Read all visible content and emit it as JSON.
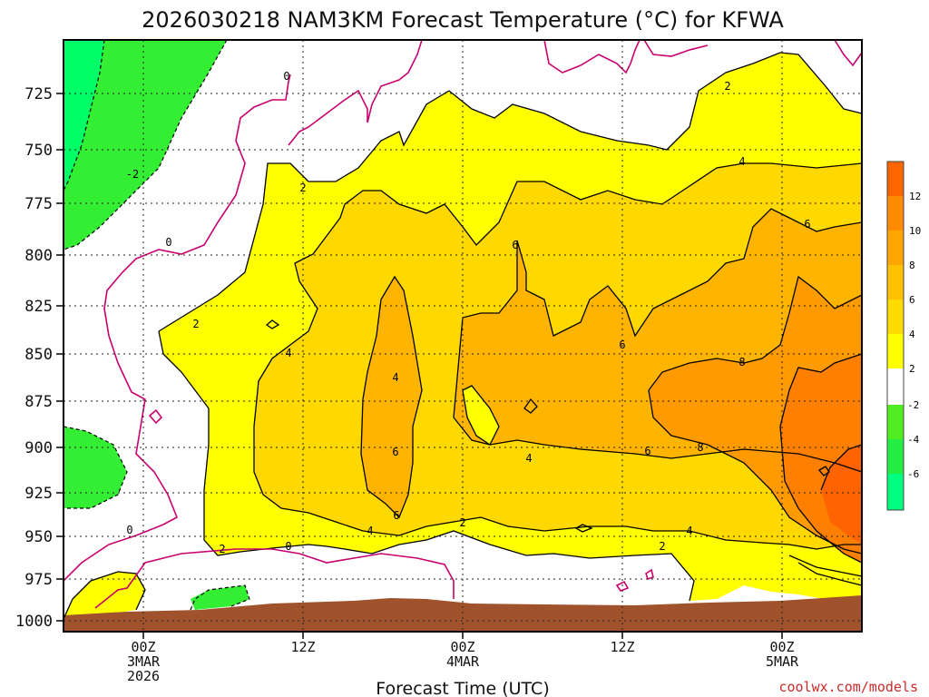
{
  "chart_data": {
    "type": "heatmap",
    "title": "2026030218 NAM3KM Forecast Temperature (°C) for KFWA",
    "xlabel": "Forecast Time (UTC)",
    "ylabel": "",
    "credit": "coolwx.com/models",
    "y_ticks": [
      "725",
      "750",
      "775",
      "800",
      "825",
      "850",
      "875",
      "900",
      "925",
      "950",
      "975",
      "1000"
    ],
    "x_ticks": [
      {
        "lines": [
          "00Z",
          "3MAR",
          "2026"
        ]
      },
      {
        "lines": [
          "12Z"
        ]
      },
      {
        "lines": [
          "00Z",
          "4MAR"
        ]
      },
      {
        "lines": [
          "12Z"
        ]
      },
      {
        "lines": [
          "00Z",
          "5MAR"
        ]
      }
    ],
    "colorbar_labels": [
      "12",
      "10",
      "8",
      "6",
      "4",
      "2",
      "-2",
      "-4",
      "-6"
    ],
    "contour_labels": [
      "0",
      "-2",
      "0",
      "2",
      "2",
      "4",
      "6",
      "6",
      "4",
      "6",
      "4",
      "6",
      "8",
      "8",
      "6",
      "4",
      "4",
      "2",
      "2",
      "0",
      "0",
      "2",
      "2",
      "4",
      "6"
    ],
    "colors": {
      "minus6": "#00ff7f",
      "minus4": "#3cf03c",
      "minus2": "#7cec28",
      "zero_band": "#ffffff",
      "plus2": "#ffff00",
      "plus4": "#ffe000",
      "plus6": "#ffc800",
      "plus8": "#ffaa00",
      "plus10": "#ff8c00",
      "plus12": "#ff6600",
      "ground": "#a0522d",
      "zero_contour": "#c8006e"
    }
  }
}
